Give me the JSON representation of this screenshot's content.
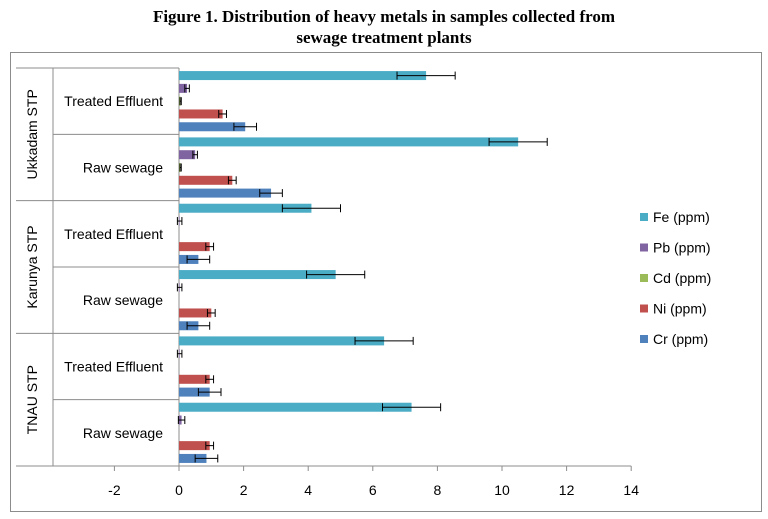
{
  "title_line1": "Figure 1. Distribution of heavy metals in samples collected from",
  "title_line2": "sewage treatment plants",
  "chart_data": {
    "type": "bar",
    "orientation": "horizontal",
    "xlim": [
      -4,
      14
    ],
    "x_ticks": [
      -2,
      0,
      2,
      4,
      6,
      8,
      10,
      12,
      14
    ],
    "xlabel": "",
    "ylabel": "",
    "grid": false,
    "legend_position": "right",
    "groups": [
      {
        "label": "Ukkadam STP",
        "categories": [
          "Treated Effluent",
          "Raw sewage"
        ]
      },
      {
        "label": "Karunya STP",
        "categories": [
          "Treated Effluent",
          "Raw sewage"
        ]
      },
      {
        "label": "TNAU STP",
        "categories": [
          "Treated Effluent",
          "Raw sewage"
        ]
      }
    ],
    "categories": [
      "Ukkadam STP - Treated Effluent",
      "Ukkadam STP - Raw sewage",
      "Karunya STP - Treated Effluent",
      "Karunya STP - Raw sewage",
      "TNAU STP - Treated Effluent",
      "TNAU STP - Raw sewage"
    ],
    "series": [
      {
        "name": "Fe (ppm)",
        "color": "#4bacc6",
        "values": [
          7.65,
          10.5,
          4.1,
          4.85,
          6.35,
          7.2
        ],
        "errors": [
          0.9,
          0.9,
          0.9,
          0.9,
          0.9,
          0.9
        ]
      },
      {
        "name": "Pb (ppm)",
        "color": "#8064a2",
        "values": [
          0.25,
          0.5,
          0.02,
          0.02,
          0.02,
          0.08
        ],
        "errors": [
          0.07,
          0.07,
          0.07,
          0.07,
          0.07,
          0.1
        ]
      },
      {
        "name": "Cd (ppm)",
        "color": "#9bbb59",
        "values": [
          0.05,
          0.05,
          0.0,
          0.0,
          0.0,
          0.0
        ],
        "errors": [
          0.02,
          0.02,
          0.0,
          0.0,
          0.0,
          0.0
        ]
      },
      {
        "name": "Ni (ppm)",
        "color": "#c0504d",
        "values": [
          1.35,
          1.65,
          0.95,
          1.0,
          0.95,
          0.95
        ],
        "errors": [
          0.12,
          0.12,
          0.12,
          0.12,
          0.12,
          0.12
        ]
      },
      {
        "name": "Cr (ppm)",
        "color": "#4f81bd",
        "values": [
          2.05,
          2.85,
          0.6,
          0.6,
          0.95,
          0.85
        ],
        "errors": [
          0.35,
          0.35,
          0.35,
          0.35,
          0.35,
          0.35
        ]
      }
    ]
  }
}
